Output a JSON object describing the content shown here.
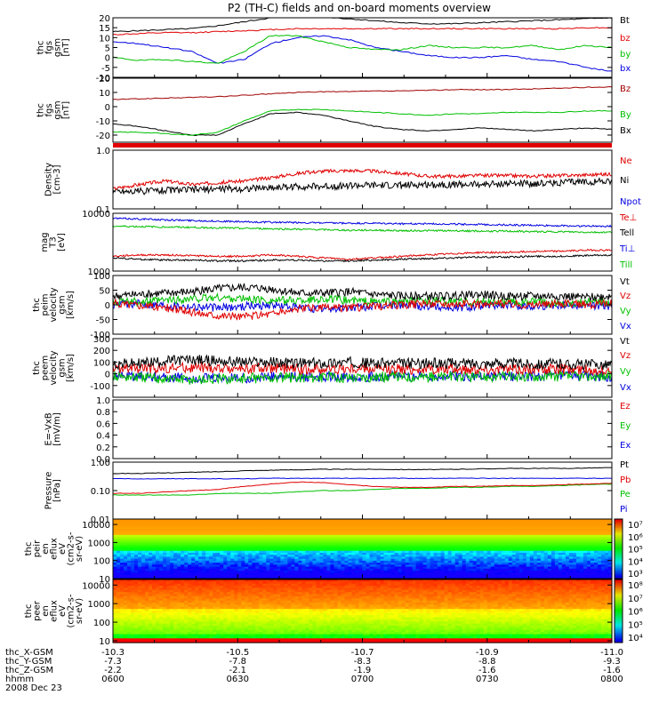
{
  "title": "P2 (TH-C) fields and on-board moments overview",
  "colors": {
    "black": "#000000",
    "red": "#e00000",
    "green": "#00c000",
    "blue": "#0000e0",
    "darkred": "#a00000"
  },
  "chart_data": [
    {
      "type": "line",
      "ylabel": [
        "thc",
        "fgs",
        "gsm",
        "[nT]"
      ],
      "ylim": [
        -10,
        20
      ],
      "yticks": [
        -10,
        -5,
        0,
        5,
        10,
        15,
        20
      ],
      "series": [
        {
          "name": "Bt",
          "color": "#000000",
          "values": [
            13,
            13.5,
            14,
            14.5,
            16,
            18,
            20,
            21,
            20.5,
            19.5,
            18.5,
            17.5,
            17,
            17,
            17.5,
            18,
            18.5,
            19,
            19.5,
            20
          ]
        },
        {
          "name": "bz",
          "color": "#e00000",
          "values": [
            11.5,
            12,
            12.5,
            12.5,
            13,
            13.5,
            14,
            14.5,
            14.5,
            14.5,
            14.5,
            14.5,
            14.5,
            14.5,
            14.5,
            14.5,
            14.5,
            14.5,
            15,
            15
          ]
        },
        {
          "name": "by",
          "color": "#00c000",
          "values": [
            0,
            -1.5,
            -1,
            -2,
            -3,
            3,
            11,
            11,
            8,
            5,
            4,
            4,
            6,
            5,
            5,
            5,
            6,
            4,
            6,
            5
          ]
        },
        {
          "name": "bx",
          "color": "#0000e0",
          "values": [
            8,
            7,
            5,
            3,
            -3,
            -1,
            7,
            10,
            11,
            9,
            5,
            3,
            1,
            0,
            0,
            1,
            -1,
            -2,
            -5,
            -7
          ]
        }
      ]
    },
    {
      "type": "line",
      "ylabel": [
        "thc",
        "fgs",
        "gsm",
        "[nT]"
      ],
      "ylim": [
        -25,
        20
      ],
      "yticks": [
        -20,
        -10,
        0,
        10,
        20
      ],
      "series": [
        {
          "name": "Bz",
          "color": "#a00000",
          "values": [
            5,
            5.5,
            6,
            6.5,
            7,
            8,
            9,
            10,
            10.5,
            10.5,
            11,
            11,
            11.5,
            12,
            12,
            12,
            12.5,
            13,
            13.5,
            14
          ]
        },
        {
          "name": "By",
          "color": "#00c000",
          "values": [
            -18,
            -18,
            -19,
            -20,
            -18,
            -10,
            -3,
            -2,
            -2,
            -3,
            -4,
            -5,
            -6,
            -5,
            -5,
            -4,
            -4,
            -4,
            -3,
            -3
          ]
        },
        {
          "name": "Bx",
          "color": "#000000",
          "values": [
            -12,
            -14,
            -17,
            -20,
            -20,
            -12,
            -5,
            -4,
            -6,
            -10,
            -14,
            -16,
            -17,
            -16,
            -15,
            -16,
            -17,
            -16,
            -15,
            -16
          ]
        }
      ]
    },
    {
      "type": "line",
      "ylabel": [
        "Density",
        "[cm-3]"
      ],
      "ylim": [
        0.1,
        1.0
      ],
      "yscale": "log",
      "yticks": [
        0.1,
        1.0
      ],
      "yticklabels": [
        "0.1",
        "1.0"
      ],
      "series": [
        {
          "name": "Ne",
          "color": "#e00000",
          "values": [
            0.22,
            0.26,
            0.3,
            0.26,
            0.28,
            0.3,
            0.34,
            0.4,
            0.44,
            0.45,
            0.44,
            0.4,
            0.36,
            0.36,
            0.37,
            0.37,
            0.36,
            0.37,
            0.38,
            0.39
          ]
        },
        {
          "name": "Ni",
          "color": "#000000",
          "values": [
            0.2,
            0.2,
            0.21,
            0.21,
            0.22,
            0.22,
            0.23,
            0.24,
            0.24,
            0.25,
            0.25,
            0.25,
            0.26,
            0.26,
            0.26,
            0.27,
            0.27,
            0.28,
            0.29,
            0.3
          ]
        },
        {
          "name": "Npot",
          "color": "#0000e0",
          "values": []
        }
      ]
    },
    {
      "type": "line",
      "ylabel": [
        "mag",
        "T3",
        "[eV]"
      ],
      "ylim": [
        1000,
        10000
      ],
      "yscale": "log",
      "yticks": [
        1000,
        10000
      ],
      "yticklabels": [
        "1000",
        "10000"
      ],
      "series": [
        {
          "name": "Te⊥",
          "color": "#e00000",
          "values": [
            1800,
            1900,
            1900,
            1850,
            1800,
            1800,
            1900,
            1800,
            1700,
            1600,
            1700,
            1800,
            1900,
            2000,
            2100,
            2100,
            2200,
            2200,
            2300,
            2300
          ]
        },
        {
          "name": "Tell",
          "color": "#000000",
          "values": [
            1700,
            1600,
            1550,
            1550,
            1500,
            1500,
            1550,
            1550,
            1500,
            1500,
            1550,
            1600,
            1650,
            1700,
            1750,
            1750,
            1800,
            1800,
            1850,
            1900
          ]
        },
        {
          "name": "Ti⊥",
          "color": "#0000e0",
          "values": [
            8200,
            8000,
            7700,
            7500,
            7300,
            7100,
            7000,
            6900,
            6800,
            6700,
            6700,
            6600,
            6600,
            6500,
            6400,
            6300,
            6200,
            6100,
            6000,
            6000
          ]
        },
        {
          "name": "Till",
          "color": "#00c000",
          "values": [
            6000,
            5900,
            5800,
            5700,
            5600,
            5500,
            5400,
            5300,
            5200,
            5100,
            5100,
            5000,
            5000,
            5000,
            4900,
            4900,
            4800,
            4800,
            4700,
            4700
          ]
        }
      ]
    },
    {
      "type": "line",
      "ylabel": [
        "thc",
        "peim",
        "velocity",
        "gsm",
        "[km/s]"
      ],
      "ylim": [
        -100,
        100
      ],
      "yticks": [
        -100,
        -50,
        0,
        50,
        100
      ],
      "series": [
        {
          "name": "Vt",
          "color": "#000000",
          "values": [
            30,
            35,
            40,
            45,
            55,
            60,
            55,
            40,
            40,
            45,
            35,
            30,
            30,
            30,
            35,
            30,
            30,
            30,
            25,
            30
          ]
        },
        {
          "name": "Vz",
          "color": "#e00000",
          "values": [
            5,
            0,
            -10,
            -25,
            -35,
            -40,
            -30,
            -15,
            -10,
            -10,
            -5,
            0,
            5,
            5,
            0,
            5,
            0,
            5,
            0,
            5
          ]
        },
        {
          "name": "Vy",
          "color": "#00c000",
          "values": [
            10,
            10,
            15,
            20,
            25,
            20,
            15,
            15,
            20,
            15,
            10,
            10,
            15,
            10,
            10,
            10,
            10,
            5,
            10,
            10
          ]
        },
        {
          "name": "Vx",
          "color": "#0000e0",
          "values": [
            0,
            5,
            0,
            -5,
            -10,
            -5,
            0,
            -10,
            -15,
            -10,
            -5,
            0,
            -5,
            -10,
            -5,
            0,
            -5,
            0,
            0,
            -5
          ]
        }
      ]
    },
    {
      "type": "line",
      "ylabel": [
        "thc",
        "peem",
        "velocity",
        "gsm",
        "[km/s]"
      ],
      "ylim": [
        -200,
        300
      ],
      "yticks": [
        -100,
        0,
        100,
        200,
        300
      ],
      "yticklabels": [
        "-100",
        "0",
        "100",
        "200",
        "300"
      ],
      "series": [
        {
          "name": "Vt",
          "color": "#000000",
          "values": [
            80,
            90,
            110,
            120,
            110,
            100,
            100,
            90,
            90,
            100,
            90,
            90,
            90,
            90,
            90,
            90,
            85,
            85,
            80,
            80
          ]
        },
        {
          "name": "Vz",
          "color": "#e00000",
          "values": [
            40,
            45,
            50,
            50,
            45,
            45,
            45,
            40,
            40,
            45,
            40,
            40,
            40,
            40,
            40,
            40,
            40,
            40,
            35,
            35
          ]
        },
        {
          "name": "Vy",
          "color": "#00c000",
          "values": [
            -20,
            -30,
            -40,
            -50,
            -45,
            -40,
            -35,
            -30,
            -30,
            -30,
            -25,
            -25,
            -25,
            -25,
            -25,
            -25,
            -20,
            -20,
            -20,
            -20
          ]
        },
        {
          "name": "Vx",
          "color": "#0000e0",
          "values": [
            -10,
            -20,
            -30,
            -40,
            -40,
            -35,
            -30,
            -30,
            -25,
            -25,
            -25,
            -20,
            -20,
            -20,
            -20,
            -20,
            -20,
            -20,
            -20,
            -20
          ]
        }
      ]
    },
    {
      "type": "line",
      "ylabel": [
        "E=-VxB",
        "[mV/m]"
      ],
      "ylim": [
        0,
        1.0
      ],
      "yticks": [
        0,
        0.2,
        0.4,
        0.6,
        0.8,
        1.0
      ],
      "yticklabels": [
        "0.0",
        "0.2",
        "0.4",
        "0.6",
        "0.8",
        "1.0"
      ],
      "series": [
        {
          "name": "Ez",
          "color": "#e00000",
          "values": []
        },
        {
          "name": "Ey",
          "color": "#00c000",
          "values": []
        },
        {
          "name": "Ex",
          "color": "#0000e0",
          "values": []
        }
      ]
    },
    {
      "type": "line",
      "ylabel": [
        "Pressure",
        "[nPa]"
      ],
      "ylim": [
        0.01,
        1.0
      ],
      "yscale": "log",
      "yticks": [
        0.01,
        0.1,
        1.0
      ],
      "yticklabels": [
        "0.01",
        "0.10",
        "1.00"
      ],
      "series": [
        {
          "name": "Pt",
          "color": "#000000",
          "values": [
            0.4,
            0.4,
            0.42,
            0.44,
            0.46,
            0.5,
            0.52,
            0.54,
            0.56,
            0.56,
            0.56,
            0.55,
            0.55,
            0.56,
            0.58,
            0.6,
            0.6,
            0.6,
            0.62,
            0.64
          ]
        },
        {
          "name": "Pb",
          "color": "#e00000",
          "values": [
            0.08,
            0.08,
            0.09,
            0.1,
            0.11,
            0.14,
            0.17,
            0.2,
            0.19,
            0.16,
            0.14,
            0.13,
            0.13,
            0.14,
            0.14,
            0.15,
            0.15,
            0.16,
            0.17,
            0.18
          ]
        },
        {
          "name": "Pe",
          "color": "#00c000",
          "values": [
            0.07,
            0.07,
            0.07,
            0.07,
            0.08,
            0.08,
            0.08,
            0.09,
            0.1,
            0.1,
            0.11,
            0.12,
            0.12,
            0.13,
            0.13,
            0.14,
            0.14,
            0.15,
            0.16,
            0.17
          ]
        },
        {
          "name": "Pi",
          "color": "#0000e0",
          "values": [
            0.26,
            0.26,
            0.26,
            0.26,
            0.26,
            0.26,
            0.27,
            0.27,
            0.27,
            0.27,
            0.27,
            0.27,
            0.27,
            0.27,
            0.27,
            0.27,
            0.27,
            0.27,
            0.27,
            0.27
          ]
        }
      ]
    },
    {
      "type": "heatmap",
      "ylabel": [
        "thc",
        "peir",
        "en",
        "eflux",
        "eV",
        "(cm2-s-",
        "sr-eV)"
      ],
      "yscale": "log",
      "ylim": [
        10,
        20000
      ],
      "yticks": [
        10,
        100,
        1000,
        10000
      ],
      "yticklabels": [
        "10",
        "100",
        "1000",
        "10000"
      ],
      "colorbar": {
        "ticks": [
          "10³",
          "10⁴",
          "10⁵",
          "10⁶",
          "10⁷"
        ]
      }
    },
    {
      "type": "heatmap",
      "ylabel": [
        "thc",
        "peer",
        "en",
        "eflux",
        "eV",
        "(cm2-s-",
        "sr-eV)"
      ],
      "yscale": "log",
      "ylim": [
        8,
        20000
      ],
      "yticks": [
        10,
        100,
        1000,
        10000
      ],
      "yticklabels": [
        "10",
        "100",
        "1000",
        "10000"
      ],
      "colorbar": {
        "ticks": [
          "10⁴",
          "10⁵",
          "10⁶",
          "10⁷",
          "10⁸"
        ]
      }
    }
  ],
  "xaxis": {
    "rows": [
      {
        "label": "thc_X-GSM",
        "values": [
          "-10.3",
          "-10.5",
          "-10.7",
          "-10.9",
          "-11.0"
        ]
      },
      {
        "label": "thc_Y-GSM",
        "values": [
          "-7.3",
          "-7.8",
          "-8.3",
          "-8.8",
          "-9.3"
        ]
      },
      {
        "label": "thc_Z-GSM",
        "values": [
          "-2.2",
          "-2.1",
          "-1.9",
          "-1.6",
          "-1.6"
        ]
      },
      {
        "label": "hhmm",
        "values": [
          "0600",
          "0630",
          "0700",
          "0730",
          "0800"
        ]
      }
    ],
    "date": "2008 Dec 23"
  }
}
